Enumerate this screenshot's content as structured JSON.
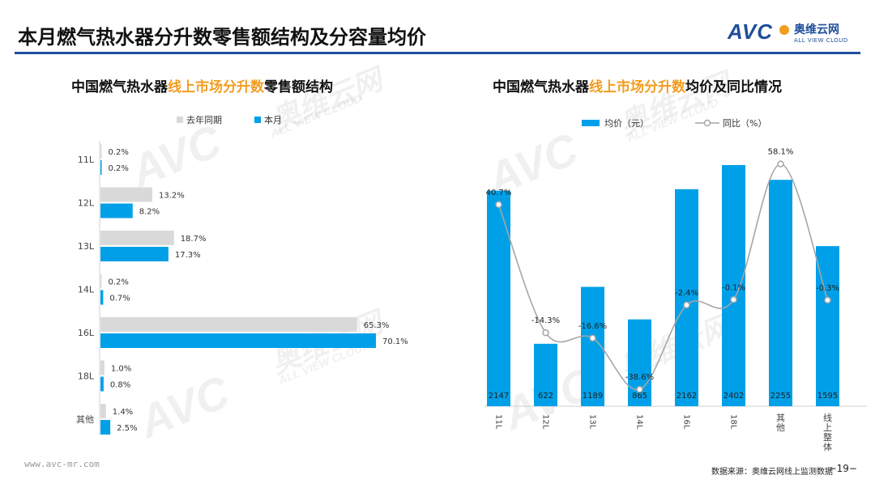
{
  "header": {
    "title": "本月燃气热水器分升数零售额结构及分容量均价",
    "logo_text": "AVC",
    "logo_cn": "奥维云网",
    "logo_en": "ALL VIEW CLOUD"
  },
  "watermark": {
    "text_cn": "奥维云网",
    "text_en": "ALL VIEW CLOUD",
    "text_logo": "AVC"
  },
  "left_chart": {
    "title_prefix": "中国燃气热水器",
    "title_highlight": "线上市场分升数",
    "title_suffix": "零售额结构"
  },
  "right_chart": {
    "title_prefix": "中国燃气热水器",
    "title_highlight": "线上市场分升数",
    "title_suffix": "均价及同比情况"
  },
  "footer": {
    "website": "www.avc-mr.com",
    "source": "数据来源：奥维云网线上监测数据",
    "page": "−19−"
  },
  "colors": {
    "current": "#00a0e9",
    "last_year": "#d9d9d9",
    "line": "#a6a6a6",
    "highlight": "#f39c1f",
    "brand": "#1f4e9c"
  },
  "chart_data": [
    {
      "type": "bar",
      "orientation": "horizontal",
      "categories": [
        "11L",
        "12L",
        "13L",
        "14L",
        "16L",
        "18L",
        "其他"
      ],
      "series": [
        {
          "name": "去年同期",
          "values": [
            0.2,
            13.2,
            18.7,
            0.2,
            65.3,
            1.0,
            1.4
          ],
          "labels": [
            "0.2%",
            "13.2%",
            "18.7%",
            "0.2%",
            "65.3%",
            "1.0%",
            "1.4%"
          ]
        },
        {
          "name": "本月",
          "values": [
            0.2,
            8.2,
            17.3,
            0.7,
            70.1,
            0.8,
            2.5
          ],
          "labels": [
            "0.2%",
            "8.2%",
            "17.3%",
            "0.7%",
            "70.1%",
            "0.8%",
            "2.5%"
          ]
        }
      ],
      "legend": [
        "去年同期",
        "本月"
      ],
      "legend_position": "top"
    },
    {
      "type": "bar+line",
      "categories": [
        "11L",
        "12L",
        "13L",
        "14L",
        "16L",
        "18L",
        "其他",
        "线上整体"
      ],
      "series": [
        {
          "name": "均价（元）",
          "type": "bar",
          "values": [
            2147,
            622,
            1189,
            865,
            2162,
            2402,
            2255,
            1595
          ]
        },
        {
          "name": "同比（%）",
          "type": "line",
          "values": [
            40.7,
            -14.3,
            -16.6,
            -38.6,
            -2.4,
            -0.1,
            58.1,
            -0.3
          ],
          "labels": [
            "40.7%",
            "-14.3%",
            "-16.6%",
            "-38.6%",
            "-2.4%",
            "-0.1%",
            "58.1%",
            "-0.3%"
          ]
        }
      ],
      "legend": [
        "均价（元）",
        "同比（%）"
      ],
      "legend_position": "top"
    }
  ]
}
